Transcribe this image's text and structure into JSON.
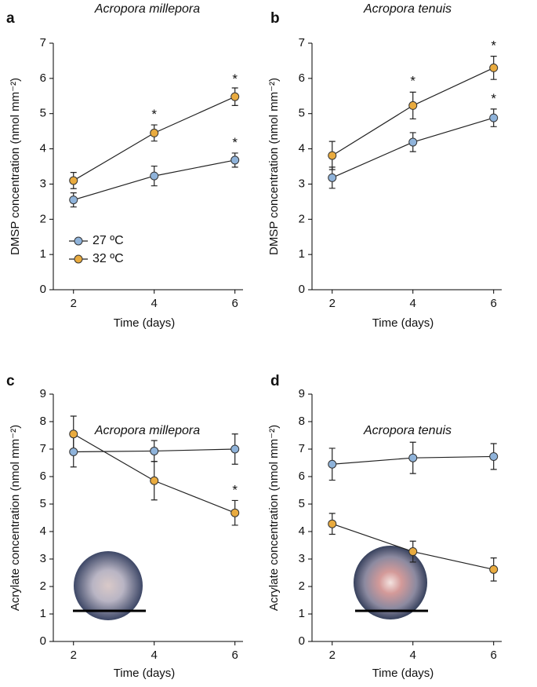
{
  "chart_data": [
    {
      "type": "line",
      "label": "a",
      "title": "Acropora millepora",
      "xlabel": "Time (days)",
      "ylabel": "DMSP concentration (nmol mm⁻²)",
      "x": [
        2,
        4,
        6
      ],
      "xlim": [
        1.5,
        6.2
      ],
      "xticks": [
        2,
        4,
        6
      ],
      "ylim": [
        0,
        7
      ],
      "yticks": [
        0,
        1,
        2,
        3,
        4,
        5,
        6,
        7
      ],
      "legend": "lower left",
      "series": [
        {
          "name": "27 ºC",
          "color": "#8fb3da",
          "values": [
            2.55,
            3.23,
            3.68
          ],
          "errors": [
            0.2,
            0.28,
            0.2
          ]
        },
        {
          "name": "32 ºC",
          "color": "#e9ab3f",
          "values": [
            3.1,
            4.45,
            5.48
          ],
          "errors": [
            0.23,
            0.23,
            0.25
          ]
        }
      ],
      "annotations": [
        {
          "text": "*",
          "x": 4,
          "y": 5.05
        },
        {
          "text": "*",
          "x": 6,
          "y": 6.05
        },
        {
          "text": "*",
          "x": 6,
          "y": 4.25
        }
      ]
    },
    {
      "type": "line",
      "label": "b",
      "title": "Acropora tenuis",
      "xlabel": "Time (days)",
      "ylabel": "DMSP concentration (nmol mm⁻²)",
      "x": [
        2,
        4,
        6
      ],
      "xlim": [
        1.5,
        6.2
      ],
      "xticks": [
        2,
        4,
        6
      ],
      "ylim": [
        0,
        7
      ],
      "yticks": [
        0,
        1,
        2,
        3,
        4,
        5,
        6,
        7
      ],
      "series": [
        {
          "color": "#8fb3da",
          "values": [
            3.18,
            4.19,
            4.88
          ],
          "errors": [
            0.3,
            0.27,
            0.25
          ]
        },
        {
          "color": "#e9ab3f",
          "values": [
            3.81,
            5.23,
            6.3
          ],
          "errors": [
            0.4,
            0.38,
            0.33
          ]
        }
      ],
      "annotations": [
        {
          "text": "*",
          "x": 4,
          "y": 6.0
        },
        {
          "text": "*",
          "x": 6,
          "y": 7.0
        },
        {
          "text": "*",
          "x": 6,
          "y": 5.5
        }
      ]
    },
    {
      "type": "line",
      "label": "c",
      "title": "Acropora millepora",
      "xlabel": "Time (days)",
      "ylabel": "Acrylate concentration (nmol mm⁻²)",
      "x": [
        2,
        4,
        6
      ],
      "xlim": [
        1.5,
        6.2
      ],
      "xticks": [
        2,
        4,
        6
      ],
      "ylim": [
        0,
        9
      ],
      "yticks": [
        0,
        1,
        2,
        3,
        4,
        5,
        6,
        7,
        8,
        9
      ],
      "series": [
        {
          "color": "#8fb3da",
          "values": [
            6.9,
            6.93,
            7.0
          ],
          "errors": [
            0.55,
            0.38,
            0.55
          ]
        },
        {
          "color": "#e9ab3f",
          "values": [
            7.55,
            5.85,
            4.68
          ],
          "errors": [
            0.65,
            0.7,
            0.45
          ]
        }
      ],
      "annotations": [
        {
          "text": "*",
          "x": 6,
          "y": 5.6
        }
      ]
    },
    {
      "type": "line",
      "label": "d",
      "title": "Acropora tenuis",
      "xlabel": "Time (days)",
      "ylabel": "Acrylate concentration (nmol mm⁻²)",
      "x": [
        2,
        4,
        6
      ],
      "xlim": [
        1.5,
        6.2
      ],
      "xticks": [
        2,
        4,
        6
      ],
      "ylim": [
        0,
        9
      ],
      "yticks": [
        0,
        1,
        2,
        3,
        4,
        5,
        6,
        7,
        8,
        9
      ],
      "series": [
        {
          "color": "#8fb3da",
          "values": [
            6.45,
            6.68,
            6.73
          ],
          "errors": [
            0.58,
            0.57,
            0.47
          ]
        },
        {
          "color": "#e9ab3f",
          "values": [
            4.28,
            3.27,
            2.62
          ],
          "errors": [
            0.38,
            0.38,
            0.42
          ]
        }
      ]
    }
  ]
}
